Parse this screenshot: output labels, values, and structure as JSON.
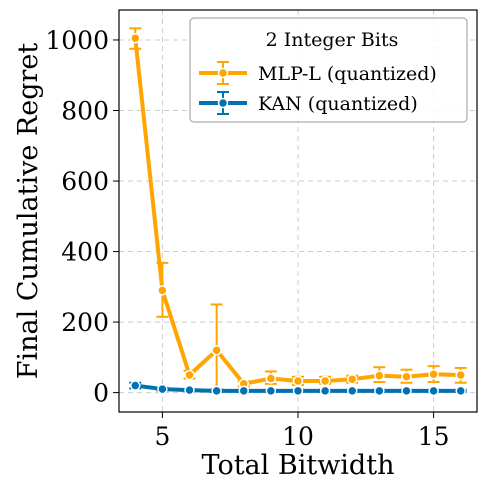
{
  "chart_data": {
    "type": "line",
    "title": "",
    "xlabel": "Total Bitwidth",
    "ylabel": "Final Cumulative Regret",
    "xlim": [
      3.4,
      16.6
    ],
    "ylim": [
      -55,
      1085
    ],
    "xticks": [
      5,
      10,
      15
    ],
    "yticks": [
      0,
      200,
      400,
      600,
      800,
      1000
    ],
    "grid": true,
    "legend": {
      "title": "2 Integer Bits",
      "placement": "top-right"
    },
    "x": [
      4,
      5,
      6,
      7,
      8,
      9,
      10,
      11,
      12,
      13,
      14,
      15,
      16
    ],
    "series": [
      {
        "name": "MLP-L (quantized)",
        "color": "#FFA500",
        "values": [
          1005,
          290,
          50,
          120,
          25,
          40,
          33,
          33,
          38,
          48,
          45,
          52,
          50
        ],
        "err_low": [
          975,
          215,
          40,
          10,
          18,
          25,
          22,
          25,
          28,
          30,
          28,
          30,
          28
        ],
        "err_high": [
          1033,
          368,
          62,
          250,
          32,
          60,
          45,
          45,
          48,
          72,
          65,
          75,
          70
        ]
      },
      {
        "name": "KAN (quantized)",
        "color": "#0072B2",
        "values": [
          20,
          10,
          7,
          5,
          5,
          5,
          5,
          5,
          5,
          5,
          5,
          5,
          5
        ],
        "err_low": [
          12,
          6,
          4,
          2,
          2,
          2,
          2,
          2,
          2,
          2,
          2,
          2,
          2
        ],
        "err_high": [
          28,
          14,
          10,
          8,
          8,
          8,
          8,
          8,
          8,
          8,
          8,
          8,
          8
        ]
      }
    ]
  }
}
